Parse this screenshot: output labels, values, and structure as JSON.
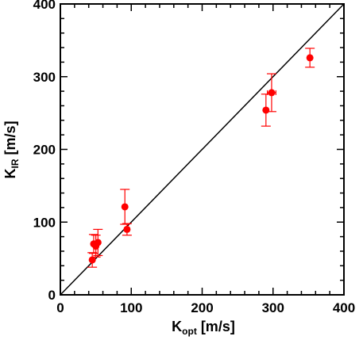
{
  "chart_data": {
    "type": "scatter",
    "xlabel": {
      "main": "K",
      "sub": "opt",
      "unit": " [m/s]"
    },
    "ylabel": {
      "main": "K",
      "sub": "IR",
      "unit": " [m/s]"
    },
    "xlim": [
      0,
      400
    ],
    "ylim": [
      0,
      400
    ],
    "xticks": [
      0,
      100,
      200,
      300,
      400
    ],
    "yticks": [
      0,
      100,
      200,
      300,
      400
    ],
    "minor_tick_step": 20,
    "grid": false,
    "reference_line": {
      "label": "",
      "x": [
        0,
        400
      ],
      "y": [
        0,
        400
      ]
    },
    "marker_color": "#ff0000",
    "points": [
      {
        "x": 45,
        "y": 48,
        "xerr": 3,
        "yerr": 10
      },
      {
        "x": 47,
        "y": 70,
        "xerr": 3,
        "yerr": 13
      },
      {
        "x": 50,
        "y": 67,
        "xerr": 3,
        "yerr": 15
      },
      {
        "x": 53,
        "y": 72,
        "xerr": 3,
        "yerr": 18
      },
      {
        "x": 91,
        "y": 121,
        "xerr": 3,
        "yerr": 24
      },
      {
        "x": 94,
        "y": 90,
        "xerr": 3,
        "yerr": 8
      },
      {
        "x": 290,
        "y": 254,
        "xerr": 3,
        "yerr": 22
      },
      {
        "x": 298,
        "y": 278,
        "xerr": 6,
        "yerr": 26
      },
      {
        "x": 352,
        "y": 326,
        "xerr": 3,
        "yerr": 13
      }
    ]
  }
}
